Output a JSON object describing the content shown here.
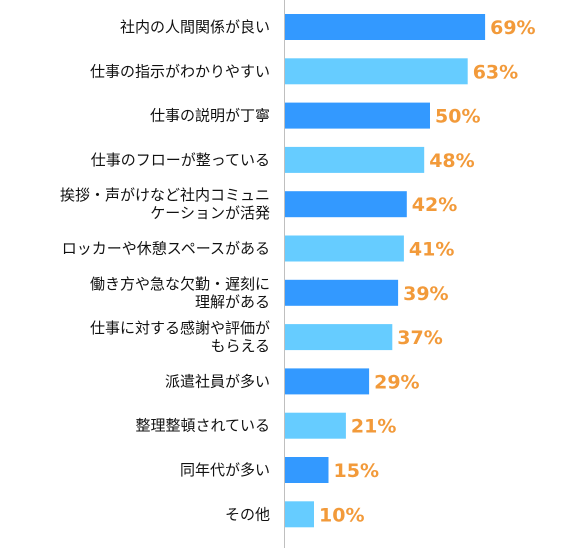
{
  "chart_data": {
    "type": "bar",
    "orientation": "horizontal",
    "categories": [
      "社内の人間関係が良い",
      "仕事の指示がわかりやすい",
      "仕事の説明が丁寧",
      "仕事のフローが整っている",
      "挨拶・声がけなど社内コミュニケーションが活発",
      "ロッカーや休憩スペースがある",
      "働き方や急な欠勤・遅刻に理解がある",
      "仕事に対する感謝や評価がもらえる",
      "派遣社員が多い",
      "整理整頓されている",
      "同年代が多い",
      "その他"
    ],
    "category_label_lines": [
      [
        "社内の人間関係が良い"
      ],
      [
        "仕事の指示がわかりやすい"
      ],
      [
        "仕事の説明が丁寧"
      ],
      [
        "仕事のフローが整っている"
      ],
      [
        "挨拶・声がけなど社内コミュニ",
        "ケーションが活発"
      ],
      [
        "ロッカーや休憩スペースがある"
      ],
      [
        "働き方や急な欠勤・遅刻に",
        "理解がある"
      ],
      [
        "仕事に対する感謝や評価が",
        "もらえる"
      ],
      [
        "派遣社員が多い"
      ],
      [
        "整理整頓されている"
      ],
      [
        "同年代が多い"
      ],
      [
        "その他"
      ]
    ],
    "values": [
      69,
      63,
      50,
      48,
      42,
      41,
      39,
      37,
      29,
      21,
      15,
      10
    ],
    "value_labels": [
      "69%",
      "63%",
      "50%",
      "48%",
      "42%",
      "41%",
      "39%",
      "37%",
      "29%",
      "21%",
      "15%",
      "10%"
    ],
    "unit": "%",
    "xlim": [
      0,
      100
    ],
    "grid": false,
    "title": "",
    "xlabel": "",
    "ylabel": "",
    "colors": {
      "bar_dark": "#3399ff",
      "bar_light": "#66ccff",
      "value_label": "#f29a3a",
      "category_label": "#111111",
      "axis_line": "#bfbfbf"
    }
  }
}
